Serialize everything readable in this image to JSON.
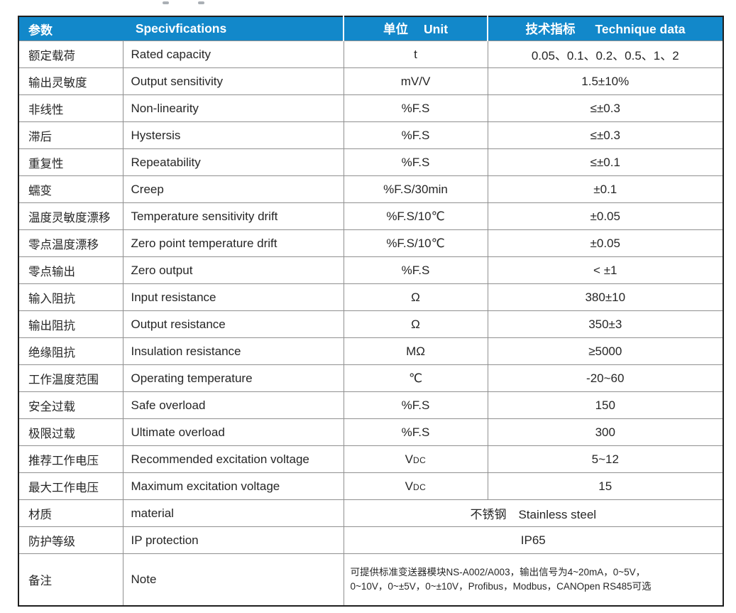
{
  "colors": {
    "header_bg": "#1288ca",
    "header_text": "#ffffff",
    "grid_line": "#909090",
    "outer_border": "#1f1f1f",
    "body_text": "#262626"
  },
  "table": {
    "header": {
      "param": "参数",
      "spec": "Specivfications",
      "unit_cn": "单位",
      "unit_en": "Unit",
      "tech_cn": "技术指标",
      "tech_en": "Technique data"
    },
    "rows": [
      {
        "param_cn": "额定载荷",
        "spec_en": "Rated capacity",
        "unit": "t",
        "value": "0.05、0.1、0.2、0.5、1、2"
      },
      {
        "param_cn": "输出灵敏度",
        "spec_en": "Output sensitivity",
        "unit": "mV/V",
        "value": "1.5±10%"
      },
      {
        "param_cn": "非线性",
        "spec_en": "Non-linearity",
        "unit": "%F.S",
        "value": "≤±0.3"
      },
      {
        "param_cn": "滞后",
        "spec_en": "Hystersis",
        "unit": "%F.S",
        "value": "≤±0.3"
      },
      {
        "param_cn": "重复性",
        "spec_en": "Repeatability",
        "unit": "%F.S",
        "value": "≤±0.1"
      },
      {
        "param_cn": "蠕变",
        "spec_en": "Creep",
        "unit": "%F.S/30min",
        "value": "±0.1"
      },
      {
        "param_cn": "温度灵敏度漂移",
        "spec_en": "Temperature sensitivity drift",
        "unit": "%F.S/10℃",
        "value": "±0.05"
      },
      {
        "param_cn": "零点温度漂移",
        "spec_en": "Zero point temperature drift",
        "unit": "%F.S/10℃",
        "value": "±0.05"
      },
      {
        "param_cn": "零点输出",
        "spec_en": "Zero output",
        "unit": "%F.S",
        "value": "< ±1"
      },
      {
        "param_cn": "输入阻抗",
        "spec_en": "Input resistance",
        "unit": "Ω",
        "value": "380±10"
      },
      {
        "param_cn": "输出阻抗",
        "spec_en": "Output resistance",
        "unit": "Ω",
        "value": "350±3"
      },
      {
        "param_cn": "绝缘阻抗",
        "spec_en": "Insulation resistance",
        "unit": "MΩ",
        "value": "≥5000"
      },
      {
        "param_cn": "工作温度范围",
        "spec_en": "Operating temperature",
        "unit": "℃",
        "value": "-20~60"
      },
      {
        "param_cn": "安全过载",
        "spec_en": "Safe overload",
        "unit": "%F.S",
        "value": "150"
      },
      {
        "param_cn": "极限过载",
        "spec_en": "Ultimate overload",
        "unit": "%F.S",
        "value": "300"
      },
      {
        "param_cn": "推荐工作电压",
        "spec_en": "Recommended excitation voltage",
        "unit": "V",
        "unit_sub": "DC",
        "value": "5~12"
      },
      {
        "param_cn": "最大工作电压",
        "spec_en": "Maximum excitation voltage",
        "unit": "V",
        "unit_sub": "DC",
        "value": "15"
      },
      {
        "param_cn": "材质",
        "spec_en": "material",
        "merged": true,
        "value": "不锈钢　Stainless steel"
      },
      {
        "param_cn": "防护等级",
        "spec_en": "IP protection",
        "merged": true,
        "value": "IP65"
      },
      {
        "param_cn": "备注",
        "spec_en": "Note",
        "merged": true,
        "note_lines": [
          "可提供标准变送器模块NS-A002/A003，输出信号为4~20mA，0~5V，",
          "0~10V，0~±5V，0~±10V，Profibus，Modbus，CANOpen RS485可选"
        ]
      }
    ]
  }
}
